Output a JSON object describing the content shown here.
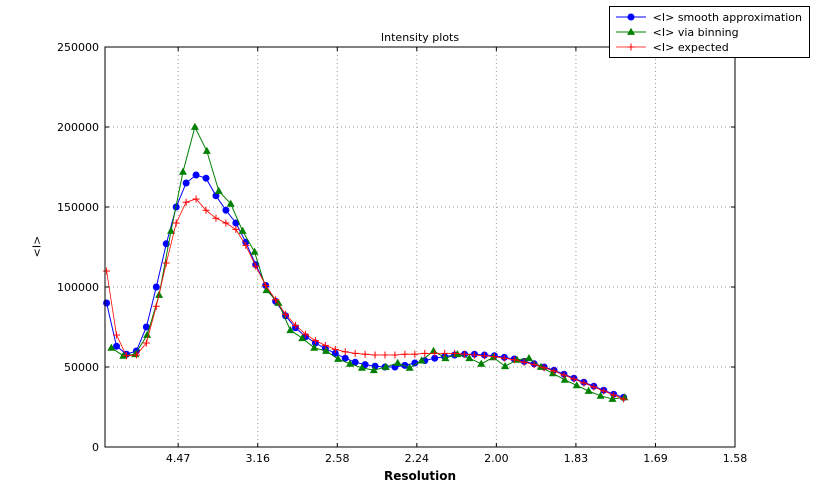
{
  "figure": {
    "title": "Intensity plots",
    "xlabel": "Resolution",
    "ylabel": "<I>"
  },
  "chart_data": {
    "type": "line",
    "title": "Intensity plots",
    "xlabel": "Resolution",
    "ylabel": "<I>",
    "x_units": "resolution ticks are in Angstrom, spacing linear in 1/d^2",
    "xlim": [
      0.004,
      0.4
    ],
    "ylim": [
      0,
      250000
    ],
    "grid": true,
    "legend_position": "upper right",
    "x_ticks": [
      {
        "value": 0.05,
        "label": "4.47"
      },
      {
        "value": 0.1,
        "label": "3.16"
      },
      {
        "value": 0.15,
        "label": "2.58"
      },
      {
        "value": 0.2,
        "label": "2.24"
      },
      {
        "value": 0.25,
        "label": "2.00"
      },
      {
        "value": 0.3,
        "label": "1.83"
      },
      {
        "value": 0.35,
        "label": "1.69"
      },
      {
        "value": 0.4,
        "label": "1.58"
      }
    ],
    "y_ticks": [
      {
        "value": 0,
        "label": "0"
      },
      {
        "value": 50000,
        "label": "50000"
      },
      {
        "value": 100000,
        "label": "100000"
      },
      {
        "value": 150000,
        "label": "150000"
      },
      {
        "value": 200000,
        "label": "200000"
      },
      {
        "value": 250000,
        "label": "250000"
      }
    ],
    "series": [
      {
        "label": "<I> smooth approximation",
        "color": "#0000ff",
        "marker": "circle",
        "line_width": 1,
        "x": [
          0.005,
          0.01125,
          0.0175,
          0.02375,
          0.03,
          0.03625,
          0.0425,
          0.04875,
          0.055,
          0.06125,
          0.0675,
          0.07375,
          0.08,
          0.08625,
          0.0925,
          0.09875,
          0.105,
          0.11125,
          0.1175,
          0.12375,
          0.13,
          0.13625,
          0.1425,
          0.14875,
          0.155,
          0.16125,
          0.1675,
          0.17375,
          0.18,
          0.18625,
          0.1925,
          0.19875,
          0.205,
          0.21125,
          0.2175,
          0.22375,
          0.23,
          0.23625,
          0.2425,
          0.24875,
          0.255,
          0.26125,
          0.2675,
          0.27375,
          0.28,
          0.28625,
          0.2925,
          0.29875,
          0.305,
          0.31125,
          0.3175,
          0.32375,
          0.33
        ],
        "y": [
          90000,
          63000,
          58000,
          60000,
          75000,
          100000,
          127000,
          150000,
          165000,
          170000,
          168000,
          157000,
          148000,
          140000,
          128000,
          114000,
          101000,
          91000,
          82000,
          74500,
          69000,
          65000,
          61500,
          58500,
          55500,
          53000,
          51500,
          50500,
          50000,
          50000,
          51000,
          52500,
          54000,
          55500,
          56500,
          57500,
          58000,
          58000,
          57500,
          57000,
          56000,
          55000,
          53500,
          52000,
          50000,
          48000,
          45500,
          43000,
          40500,
          38000,
          35500,
          33000,
          31000
        ]
      },
      {
        "label": "<I> via binning",
        "color": "#008000",
        "marker": "triangle",
        "line_width": 1,
        "x": [
          0.008,
          0.0155,
          0.023,
          0.0305,
          0.038,
          0.0455,
          0.053,
          0.0605,
          0.068,
          0.0755,
          0.083,
          0.0905,
          0.098,
          0.1055,
          0.113,
          0.1205,
          0.128,
          0.1355,
          0.143,
          0.1505,
          0.158,
          0.1655,
          0.173,
          0.1805,
          0.188,
          0.1955,
          0.203,
          0.2105,
          0.218,
          0.2255,
          0.233,
          0.2405,
          0.248,
          0.2555,
          0.263,
          0.2705,
          0.278,
          0.2855,
          0.293,
          0.3005,
          0.308,
          0.3155,
          0.323,
          0.3305
        ],
        "y": [
          62000,
          57000,
          58000,
          70000,
          95000,
          135000,
          172000,
          200000,
          185000,
          160000,
          152000,
          135000,
          122000,
          98000,
          90000,
          73000,
          68000,
          62000,
          60000,
          55000,
          52000,
          49500,
          48000,
          50000,
          52500,
          49500,
          54000,
          60000,
          55500,
          58000,
          55500,
          52000,
          56000,
          50500,
          54500,
          55500,
          50000,
          46000,
          42000,
          38500,
          35000,
          32000,
          30000,
          31000
        ]
      },
      {
        "label": "<I> expected",
        "color": "#ff0000",
        "marker": "plus",
        "line_width": 0.8,
        "x": [
          0.005,
          0.01125,
          0.0175,
          0.02375,
          0.03,
          0.03625,
          0.0425,
          0.04875,
          0.055,
          0.06125,
          0.0675,
          0.07375,
          0.08,
          0.08625,
          0.0925,
          0.09875,
          0.105,
          0.11125,
          0.1175,
          0.12375,
          0.13,
          0.13625,
          0.1425,
          0.14875,
          0.155,
          0.16125,
          0.1675,
          0.17375,
          0.18,
          0.18625,
          0.1925,
          0.19875,
          0.205,
          0.21125,
          0.2175,
          0.22375,
          0.23,
          0.23625,
          0.2425,
          0.24875,
          0.255,
          0.26125,
          0.2675,
          0.27375,
          0.28,
          0.28625,
          0.2925,
          0.29875,
          0.305,
          0.31125,
          0.3175,
          0.32375,
          0.33
        ],
        "y": [
          110000,
          70000,
          57000,
          57500,
          65000,
          88000,
          115000,
          140000,
          153000,
          155000,
          148000,
          143000,
          140000,
          136000,
          126000,
          113000,
          101000,
          92000,
          83000,
          76000,
          70500,
          66500,
          63500,
          61000,
          59500,
          58500,
          58000,
          57500,
          57500,
          57500,
          58000,
          58000,
          58500,
          58500,
          58500,
          58500,
          58000,
          57500,
          57000,
          56500,
          55500,
          54500,
          53000,
          51500,
          49500,
          47500,
          45000,
          42500,
          40000,
          37500,
          35000,
          32500,
          30000
        ]
      }
    ]
  }
}
